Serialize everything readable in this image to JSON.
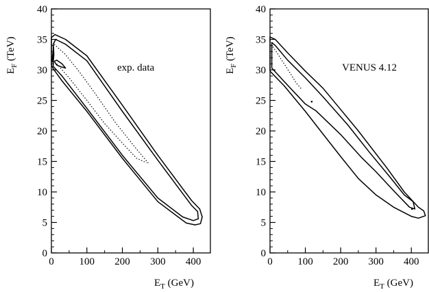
{
  "chart_data": [
    {
      "type": "contour",
      "annotation": "exp. data",
      "xlabel": {
        "main": "E",
        "sub": "T",
        "rest": " (GeV)"
      },
      "ylabel": {
        "main": "E",
        "sub": "F",
        "rest": " (TeV)"
      },
      "xlim": [
        0,
        450
      ],
      "ylim": [
        0,
        40
      ],
      "xticks": [
        0,
        100,
        200,
        300,
        400
      ],
      "yticks": [
        0,
        5,
        10,
        15,
        20,
        25,
        30,
        35,
        40
      ],
      "grid": false,
      "contours": [
        {
          "level": "outer",
          "style": "solid",
          "points": [
            [
              0,
              30.8
            ],
            [
              5,
              30.2
            ],
            [
              30,
              28.2
            ],
            [
              100,
              23.2
            ],
            [
              200,
              15.5
            ],
            [
              300,
              8.4
            ],
            [
              380,
              4.9
            ],
            [
              405,
              4.6
            ],
            [
              420,
              4.8
            ],
            [
              425,
              5.9
            ],
            [
              418,
              7.2
            ],
            [
              395,
              8.6
            ],
            [
              300,
              16.0
            ],
            [
              200,
              24.2
            ],
            [
              100,
              32.3
            ],
            [
              40,
              35.0
            ],
            [
              10,
              35.8
            ],
            [
              0,
              35.3
            ],
            [
              0,
              30.8
            ]
          ]
        },
        {
          "level": "inner",
          "style": "solid",
          "points": [
            [
              5,
              30.6
            ],
            [
              30,
              29.0
            ],
            [
              100,
              23.7
            ],
            [
              200,
              16.0
            ],
            [
              300,
              9.0
            ],
            [
              370,
              5.9
            ],
            [
              400,
              5.3
            ],
            [
              414,
              5.6
            ],
            [
              412,
              6.8
            ],
            [
              395,
              7.8
            ],
            [
              300,
              15.2
            ],
            [
              200,
              23.2
            ],
            [
              100,
              31.5
            ],
            [
              40,
              34.2
            ],
            [
              12,
              35.0
            ],
            [
              5,
              34.2
            ],
            [
              5,
              30.6
            ]
          ]
        },
        {
          "level": "core-ring",
          "style": "solid",
          "points": [
            [
              8,
              31.4
            ],
            [
              15,
              30.8
            ],
            [
              28,
              30.5
            ],
            [
              40,
              30.3
            ],
            [
              30,
              31.0
            ],
            [
              15,
              31.6
            ],
            [
              8,
              31.4
            ]
          ]
        },
        {
          "level": "core-left",
          "style": "solid",
          "points": [
            [
              2,
              31.5
            ],
            [
              6,
              33.8
            ],
            [
              7,
              32.5
            ],
            [
              5,
              31.2
            ],
            [
              2,
              31.5
            ]
          ]
        },
        {
          "level": "highest-a",
          "style": "dotted",
          "points": [
            [
              15,
              31.0
            ],
            [
              50,
              28.7
            ],
            [
              100,
              25.0
            ],
            [
              150,
              21.2
            ],
            [
              200,
              18.0
            ],
            [
              240,
              15.5
            ],
            [
              268,
              14.8
            ]
          ]
        },
        {
          "level": "highest-b",
          "style": "dotted",
          "points": [
            [
              8,
              34.2
            ],
            [
              40,
              32.5
            ],
            [
              80,
              29.6
            ],
            [
              120,
              26.4
            ],
            [
              180,
              21.4
            ],
            [
              240,
              17.0
            ],
            [
              275,
              14.6
            ]
          ]
        }
      ]
    },
    {
      "type": "contour",
      "annotation": "VENUS 4.12",
      "xlabel": {
        "main": "E",
        "sub": "T",
        "rest": " (GeV)"
      },
      "ylabel": {
        "main": "E",
        "sub": "F",
        "rest": " (TeV)"
      },
      "xlim": [
        0,
        450
      ],
      "ylim": [
        0,
        40
      ],
      "xticks": [
        0,
        100,
        200,
        300,
        400
      ],
      "yticks": [
        0,
        5,
        10,
        15,
        20,
        25,
        30,
        35,
        40
      ],
      "grid": false,
      "contours": [
        {
          "level": "outer",
          "style": "solid",
          "points": [
            [
              0,
              29.8
            ],
            [
              40,
              27.4
            ],
            [
              100,
              23.2
            ],
            [
              150,
              19.5
            ],
            [
              200,
              15.8
            ],
            [
              250,
              12.2
            ],
            [
              300,
              9.5
            ],
            [
              350,
              7.5
            ],
            [
              400,
              6.0
            ],
            [
              420,
              5.7
            ],
            [
              440,
              6.1
            ],
            [
              435,
              6.9
            ],
            [
              420,
              7.5
            ],
            [
              380,
              10.0
            ],
            [
              330,
              14.0
            ],
            [
              250,
              20.0
            ],
            [
              200,
              23.5
            ],
            [
              150,
              27.0
            ],
            [
              100,
              29.8
            ],
            [
              50,
              32.8
            ],
            [
              15,
              35.0
            ],
            [
              0,
              35.4
            ],
            [
              0,
              29.8
            ]
          ]
        },
        {
          "level": "inner",
          "style": "solid",
          "points": [
            [
              5,
              30.3
            ],
            [
              40,
              28.1
            ],
            [
              100,
              24.4
            ],
            [
              130,
              23.3
            ],
            [
              200,
              19.4
            ],
            [
              260,
              15.6
            ],
            [
              300,
              13.3
            ],
            [
              350,
              10.2
            ],
            [
              395,
              7.5
            ],
            [
              410,
              7.2
            ],
            [
              405,
              8.4
            ],
            [
              380,
              9.5
            ],
            [
              340,
              12.4
            ],
            [
              280,
              16.6
            ],
            [
              220,
              21.0
            ],
            [
              150,
              25.6
            ],
            [
              100,
              28.7
            ],
            [
              50,
              31.6
            ],
            [
              15,
              34.0
            ],
            [
              5,
              34.5
            ],
            [
              5,
              30.3
            ]
          ]
        },
        {
          "level": "highest",
          "style": "dotted",
          "points": [
            [
              8,
              33.8
            ],
            [
              20,
              32.8
            ],
            [
              40,
              31.0
            ],
            [
              60,
              29.2
            ],
            [
              75,
              27.8
            ],
            [
              90,
              26.8
            ]
          ]
        }
      ],
      "points": [
        [
          118,
          24.8
        ],
        [
          402,
          7.2
        ]
      ]
    }
  ]
}
